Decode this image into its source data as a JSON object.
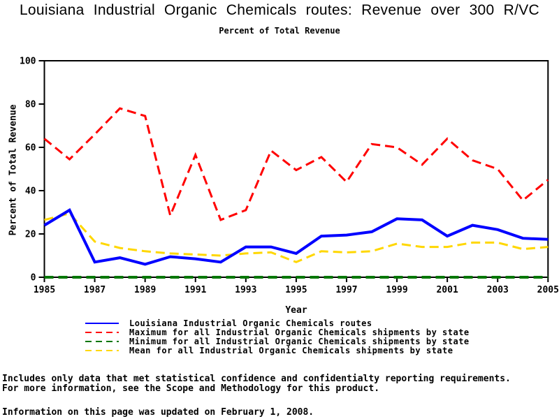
{
  "title": "Louisiana Industrial Organic Chemicals routes: Revenue over 300 R/VC",
  "subtitle": "Percent of Total Revenue",
  "chart_data": {
    "type": "line",
    "xlabel": "Year",
    "ylabel": "Percent of Total Revenue",
    "xlim": [
      1985,
      2005
    ],
    "ylim": [
      0,
      100
    ],
    "x_ticks": [
      1985,
      1987,
      1989,
      1991,
      1993,
      1995,
      1997,
      1999,
      2001,
      2003,
      2005
    ],
    "y_ticks": [
      0,
      20,
      40,
      60,
      80,
      100
    ],
    "grid": false,
    "legend_position": "bottom",
    "x": [
      1985,
      1986,
      1987,
      1988,
      1989,
      1990,
      1991,
      1992,
      1993,
      1994,
      1995,
      1996,
      1997,
      1998,
      1999,
      2000,
      2001,
      2002,
      2003,
      2004,
      2005
    ],
    "series": [
      {
        "name": "Louisiana Industrial Organic Chemicals routes",
        "color": "#0000ff",
        "style": "solid",
        "values": [
          24,
          31,
          7,
          9,
          6,
          9.5,
          8.5,
          7,
          14,
          14,
          11,
          19,
          19.5,
          21,
          27,
          26.5,
          19,
          24,
          22,
          18,
          17.5
        ]
      },
      {
        "name": "Maximum for all Industrial Organic Chemicals shipments by state",
        "color": "#ff0000",
        "style": "dashed",
        "values": [
          64,
          54.5,
          66,
          78,
          74.5,
          28.5,
          56.5,
          26.5,
          31,
          58.5,
          49.5,
          55.5,
          44,
          61.5,
          60,
          52,
          64,
          54,
          50,
          35.5,
          45
        ]
      },
      {
        "name": "Minimum for all Industrial Organic Chemicals shipments by state",
        "color": "#007700",
        "style": "dashed",
        "values": [
          0,
          0,
          0,
          0,
          0,
          0,
          0,
          0,
          0,
          0,
          0,
          0,
          0,
          0,
          0,
          0,
          0,
          0,
          0,
          0,
          0
        ]
      },
      {
        "name": "Mean for all Industrial Organic Chemicals shipments by state",
        "color": "#ffd700",
        "style": "dashed",
        "values": [
          26.5,
          29.5,
          16.5,
          13.5,
          12,
          11,
          10.5,
          10,
          11,
          11.5,
          7,
          12,
          11.5,
          12,
          15.5,
          14,
          14,
          16,
          16,
          13,
          14
        ]
      }
    ]
  },
  "footer": {
    "line1": "Includes only data that met statistical confidence and confidentialty reporting requirements.",
    "line2": "For more information, see the Scope and Methodology for this product.",
    "line3": "Information on this page was updated on February 1, 2008."
  }
}
